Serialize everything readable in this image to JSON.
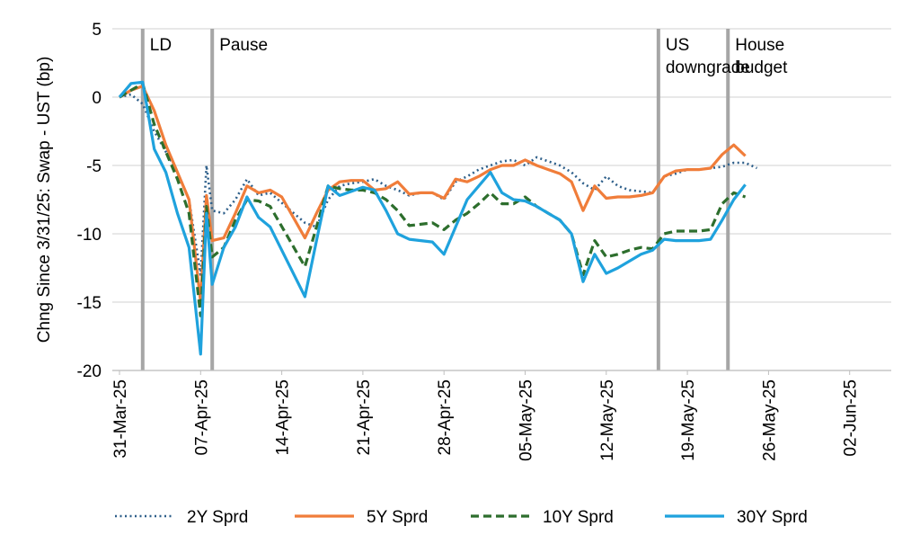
{
  "chart_data": {
    "type": "line",
    "title": "",
    "xlabel": "",
    "ylabel": "Chng Since 3/31/25: Swap - UST (bp)",
    "ylim": [
      -20,
      5
    ],
    "yticks": [
      5,
      0,
      -5,
      -10,
      -15,
      -20
    ],
    "grid": "horizontal",
    "x_tick_labels": [
      "31-Mar-25",
      "07-Apr-25",
      "14-Apr-25",
      "21-Apr-25",
      "28-Apr-25",
      "05-May-25",
      "12-May-25",
      "19-May-25",
      "26-May-25",
      "02-Jun-25"
    ],
    "x_tick_days": [
      0,
      7,
      14,
      21,
      28,
      35,
      42,
      49,
      56,
      63
    ],
    "xlim_days": [
      0,
      66.5
    ],
    "annotations": [
      {
        "day": 2,
        "lines": [
          "LD"
        ]
      },
      {
        "day": 8,
        "lines": [
          "Pause"
        ]
      },
      {
        "day": 46.5,
        "lines": [
          "US",
          "downgrade"
        ]
      },
      {
        "day": 52.5,
        "lines": [
          "House",
          "budget"
        ]
      }
    ],
    "series": [
      {
        "name": "2Y Sprd",
        "color": "#2e5f8a",
        "dash": "dot",
        "points": [
          [
            0,
            0
          ],
          [
            1,
            0.2
          ],
          [
            2,
            -0.5
          ],
          [
            3,
            -2.5
          ],
          [
            4,
            -4.0
          ],
          [
            5,
            -5.5
          ],
          [
            6,
            -7.5
          ],
          [
            7,
            -13.0
          ],
          [
            7.5,
            -5.0
          ],
          [
            8,
            -8.3
          ],
          [
            9,
            -8.5
          ],
          [
            10,
            -7.5
          ],
          [
            11,
            -6.0
          ],
          [
            12,
            -7.2
          ],
          [
            13,
            -7.0
          ],
          [
            16,
            -9.2
          ],
          [
            17,
            -9.5
          ],
          [
            18,
            -7.5
          ],
          [
            19,
            -6.5
          ],
          [
            20,
            -6.3
          ],
          [
            21,
            -6.2
          ],
          [
            22,
            -6.0
          ],
          [
            23,
            -6.5
          ],
          [
            24,
            -6.8
          ],
          [
            25,
            -7.2
          ],
          [
            26,
            -7.0
          ],
          [
            27,
            -7.0
          ],
          [
            28,
            -7.5
          ],
          [
            29,
            -6.2
          ],
          [
            30,
            -5.8
          ],
          [
            31,
            -5.3
          ],
          [
            32,
            -5.0
          ],
          [
            33,
            -4.7
          ],
          [
            34,
            -4.6
          ],
          [
            35,
            -5.0
          ],
          [
            36,
            -4.4
          ],
          [
            37,
            -4.7
          ],
          [
            38,
            -5.0
          ],
          [
            39,
            -5.5
          ],
          [
            40,
            -6.3
          ],
          [
            41,
            -6.8
          ],
          [
            42,
            -5.8
          ],
          [
            43,
            -6.5
          ],
          [
            44,
            -6.8
          ],
          [
            45,
            -6.9
          ],
          [
            46,
            -7.0
          ],
          [
            47,
            -5.8
          ],
          [
            48,
            -5.6
          ],
          [
            49,
            -5.3
          ],
          [
            50,
            -5.3
          ],
          [
            51,
            -5.2
          ],
          [
            52,
            -5.1
          ],
          [
            53,
            -4.8
          ],
          [
            54,
            -4.8
          ],
          [
            55,
            -5.2
          ]
        ]
      },
      {
        "name": "5Y Sprd",
        "color": "#f07d3a",
        "dash": "solid",
        "points": [
          [
            0,
            0
          ],
          [
            1,
            0.5
          ],
          [
            2,
            0.8
          ],
          [
            3,
            -1.0
          ],
          [
            4,
            -3.5
          ],
          [
            5,
            -5.5
          ],
          [
            6,
            -7.5
          ],
          [
            7,
            -15.0
          ],
          [
            7.5,
            -7.2
          ],
          [
            8,
            -10.5
          ],
          [
            9,
            -10.3
          ],
          [
            10,
            -8.5
          ],
          [
            11,
            -6.5
          ],
          [
            12,
            -7.0
          ],
          [
            13,
            -6.8
          ],
          [
            14,
            -7.3
          ],
          [
            16,
            -10.3
          ],
          [
            17,
            -8.5
          ],
          [
            18,
            -6.8
          ],
          [
            19,
            -6.2
          ],
          [
            20,
            -6.1
          ],
          [
            21,
            -6.1
          ],
          [
            22,
            -6.8
          ],
          [
            23,
            -6.7
          ],
          [
            24,
            -6.2
          ],
          [
            25,
            -7.1
          ],
          [
            26,
            -7.0
          ],
          [
            27,
            -7.0
          ],
          [
            28,
            -7.4
          ],
          [
            29,
            -6.0
          ],
          [
            30,
            -6.2
          ],
          [
            31,
            -5.8
          ],
          [
            32,
            -5.3
          ],
          [
            33,
            -5.0
          ],
          [
            34,
            -5.0
          ],
          [
            35,
            -4.6
          ],
          [
            36,
            -5.0
          ],
          [
            37,
            -5.3
          ],
          [
            38,
            -5.6
          ],
          [
            39,
            -6.2
          ],
          [
            40,
            -8.3
          ],
          [
            41,
            -6.5
          ],
          [
            42,
            -7.4
          ],
          [
            43,
            -7.3
          ],
          [
            44,
            -7.3
          ],
          [
            45,
            -7.2
          ],
          [
            46,
            -7.0
          ],
          [
            47,
            -5.8
          ],
          [
            48,
            -5.4
          ],
          [
            49,
            -5.3
          ],
          [
            50,
            -5.3
          ],
          [
            51,
            -5.2
          ],
          [
            52,
            -4.2
          ],
          [
            53,
            -3.5
          ],
          [
            54,
            -4.3
          ]
        ]
      },
      {
        "name": "10Y Sprd",
        "color": "#2d6e2d",
        "dash": "dash",
        "points": [
          [
            0,
            0
          ],
          [
            1,
            0.5
          ],
          [
            2,
            1.0
          ],
          [
            3,
            -2.0
          ],
          [
            4,
            -4.0
          ],
          [
            5,
            -6.0
          ],
          [
            6,
            -8.5
          ],
          [
            7,
            -16.0
          ],
          [
            7.5,
            -8.0
          ],
          [
            8,
            -11.7
          ],
          [
            9,
            -11.0
          ],
          [
            10,
            -9.0
          ],
          [
            11,
            -7.5
          ],
          [
            12,
            -7.6
          ],
          [
            13,
            -8.0
          ],
          [
            16,
            -12.4
          ],
          [
            17,
            -9.5
          ],
          [
            18,
            -6.5
          ],
          [
            19,
            -6.7
          ],
          [
            20,
            -6.8
          ],
          [
            21,
            -6.8
          ],
          [
            22,
            -7.0
          ],
          [
            23,
            -7.5
          ],
          [
            24,
            -8.3
          ],
          [
            25,
            -9.4
          ],
          [
            26,
            -9.3
          ],
          [
            27,
            -9.2
          ],
          [
            28,
            -9.7
          ],
          [
            29,
            -9.0
          ],
          [
            30,
            -8.5
          ],
          [
            31,
            -7.8
          ],
          [
            32,
            -7.0
          ],
          [
            33,
            -7.8
          ],
          [
            34,
            -7.8
          ],
          [
            35,
            -7.3
          ],
          [
            36,
            -8.0
          ],
          [
            37,
            -8.5
          ],
          [
            38,
            -9.0
          ],
          [
            39,
            -10.0
          ],
          [
            40,
            -13.0
          ],
          [
            41,
            -10.5
          ],
          [
            42,
            -11.7
          ],
          [
            43,
            -11.5
          ],
          [
            44,
            -11.2
          ],
          [
            45,
            -11.0
          ],
          [
            46,
            -11.1
          ],
          [
            47,
            -10.0
          ],
          [
            48,
            -9.8
          ],
          [
            49,
            -9.8
          ],
          [
            50,
            -9.8
          ],
          [
            51,
            -9.7
          ],
          [
            52,
            -7.8
          ],
          [
            53,
            -7.0
          ],
          [
            54,
            -7.3
          ]
        ]
      },
      {
        "name": "30Y Sprd",
        "color": "#1fa2dd",
        "dash": "solid",
        "points": [
          [
            0,
            0
          ],
          [
            1,
            1.0
          ],
          [
            2,
            1.1
          ],
          [
            3,
            -3.8
          ],
          [
            4,
            -5.5
          ],
          [
            5,
            -8.5
          ],
          [
            6,
            -11.0
          ],
          [
            7,
            -18.8
          ],
          [
            7.5,
            -8.5
          ],
          [
            8,
            -13.7
          ],
          [
            9,
            -11.0
          ],
          [
            10,
            -9.5
          ],
          [
            11,
            -7.3
          ],
          [
            12,
            -8.8
          ],
          [
            13,
            -9.5
          ],
          [
            16,
            -14.6
          ],
          [
            17,
            -10.5
          ],
          [
            18,
            -6.5
          ],
          [
            19,
            -7.2
          ],
          [
            20,
            -6.9
          ],
          [
            21,
            -6.6
          ],
          [
            22,
            -6.8
          ],
          [
            23,
            -8.3
          ],
          [
            24,
            -10.0
          ],
          [
            25,
            -10.4
          ],
          [
            26,
            -10.5
          ],
          [
            27,
            -10.6
          ],
          [
            28,
            -11.5
          ],
          [
            29,
            -9.5
          ],
          [
            30,
            -7.5
          ],
          [
            31,
            -6.5
          ],
          [
            32,
            -5.5
          ],
          [
            33,
            -7.0
          ],
          [
            34,
            -7.5
          ],
          [
            35,
            -7.6
          ],
          [
            36,
            -8.0
          ],
          [
            37,
            -8.5
          ],
          [
            38,
            -9.0
          ],
          [
            39,
            -10.0
          ],
          [
            40,
            -13.5
          ],
          [
            41,
            -11.5
          ],
          [
            42,
            -12.9
          ],
          [
            43,
            -12.5
          ],
          [
            44,
            -12.0
          ],
          [
            45,
            -11.5
          ],
          [
            46,
            -11.2
          ],
          [
            47,
            -10.4
          ],
          [
            48,
            -10.5
          ],
          [
            49,
            -10.5
          ],
          [
            50,
            -10.5
          ],
          [
            51,
            -10.4
          ],
          [
            52,
            -9.0
          ],
          [
            53,
            -7.5
          ],
          [
            54,
            -6.4
          ]
        ]
      }
    ]
  }
}
